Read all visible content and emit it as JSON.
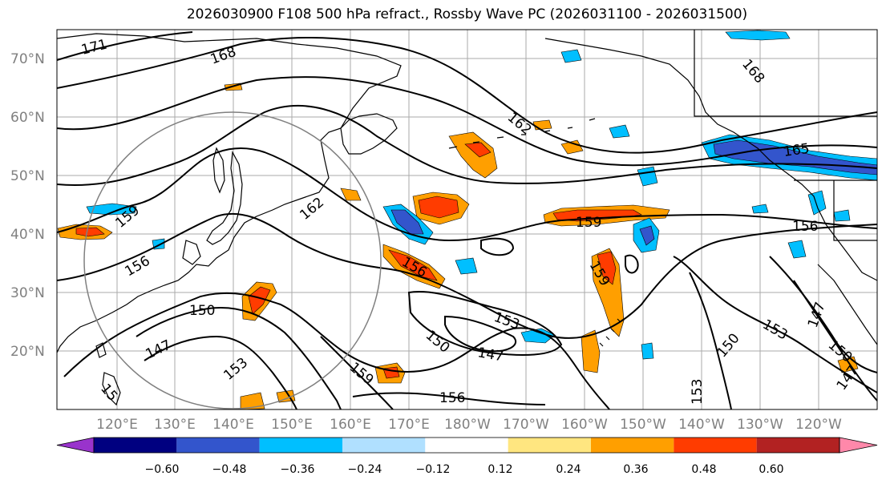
{
  "title": "2026030900 F108 500 hPa refract., Rossby Wave PC (2026031100 - 2026031500)",
  "lat_labels": [
    "70°N",
    "60°N",
    "50°N",
    "40°N",
    "30°N",
    "20°N"
  ],
  "lon_labels": [
    "120°E",
    "130°E",
    "140°E",
    "150°E",
    "160°E",
    "170°E",
    "180°W",
    "170°W",
    "160°W",
    "150°W",
    "140°W",
    "130°W",
    "120°W"
  ],
  "contour_labels": [
    "171",
    "168",
    "168",
    "162",
    "162",
    "165",
    "159",
    "159",
    "156",
    "156",
    "156",
    "150",
    "147",
    "153",
    "150",
    "147",
    "153",
    "159",
    "159",
    "156",
    "150",
    "153",
    "147",
    "150",
    "147",
    "153",
    "15"
  ],
  "colorbar": {
    "ticks": [
      "−0.60",
      "−0.48",
      "−0.36",
      "−0.24",
      "−0.12",
      "0.12",
      "0.24",
      "0.36",
      "0.48",
      "0.60"
    ],
    "colors": [
      "#9933cc",
      "#000080",
      "#3355cc",
      "#00bfff",
      "#b0e0ff",
      "#ffffff",
      "#ffe680",
      "#ff9f00",
      "#ff3c00",
      "#b22222",
      "#ff88aa"
    ]
  }
}
